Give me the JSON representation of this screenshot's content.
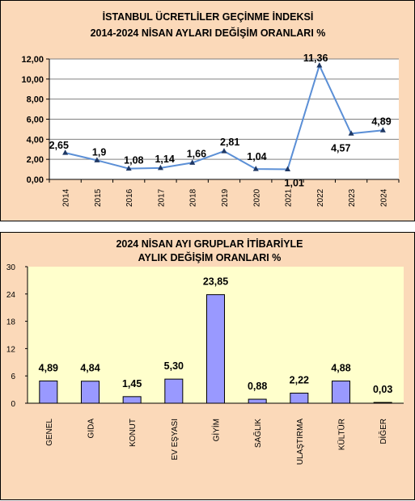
{
  "chart_data": [
    {
      "type": "line",
      "title": "İSTANBUL ÜCRETLİLER GEÇİNME İNDEKSİ",
      "subtitle": "2014-2024 NİSAN AYLARI DEĞİŞİM ORANLARI %",
      "categories": [
        "2014",
        "2015",
        "2016",
        "2017",
        "2018",
        "2019",
        "2020",
        "2021",
        "2022",
        "2023",
        "2024"
      ],
      "values": [
        2.65,
        1.9,
        1.08,
        1.14,
        1.66,
        2.81,
        1.04,
        1.01,
        11.36,
        4.57,
        4.89
      ],
      "data_labels": [
        "2,65",
        "1,9",
        "1,08",
        "1,14",
        "1,66",
        "2,81",
        "1,04",
        "1,01",
        "11,36",
        "4,57",
        "4,89"
      ],
      "yticks": [
        "0,00",
        "2,00",
        "4,00",
        "6,00",
        "8,00",
        "10,00",
        "12,00"
      ],
      "ylim": [
        0,
        12
      ],
      "grid": true,
      "colors": {
        "line": "#5b8fd6",
        "marker": "#1f3864",
        "plot_bg": "#ffffff",
        "panel_bg": "#fbd9b9"
      }
    },
    {
      "type": "bar",
      "title": "2024 NİSAN AYI  GRUPLAR İTİBARİYLE",
      "subtitle": "AYLIK DEĞİŞİM  ORANLARI  %",
      "categories": [
        "GENEL",
        "GIDA",
        "KONUT",
        "EV EŞYASI",
        "GİYİM",
        "SAĞLIK",
        "ULAŞTIRMA",
        "KÜLTÜR",
        "DİĞER"
      ],
      "values": [
        4.89,
        4.84,
        1.45,
        5.3,
        23.85,
        0.88,
        2.22,
        4.88,
        0.03
      ],
      "data_labels": [
        "4,89",
        "4,84",
        "1,45",
        "5,30",
        "23,85",
        "0,88",
        "2,22",
        "4,88",
        "0,03"
      ],
      "yticks": [
        "0",
        "6",
        "12",
        "18",
        "24",
        "30"
      ],
      "ylim": [
        0,
        30
      ],
      "grid": false,
      "colors": {
        "bar": "#9999ff",
        "plot_bg": "#ffffcc",
        "panel_bg": "#fbd9b9"
      }
    }
  ]
}
